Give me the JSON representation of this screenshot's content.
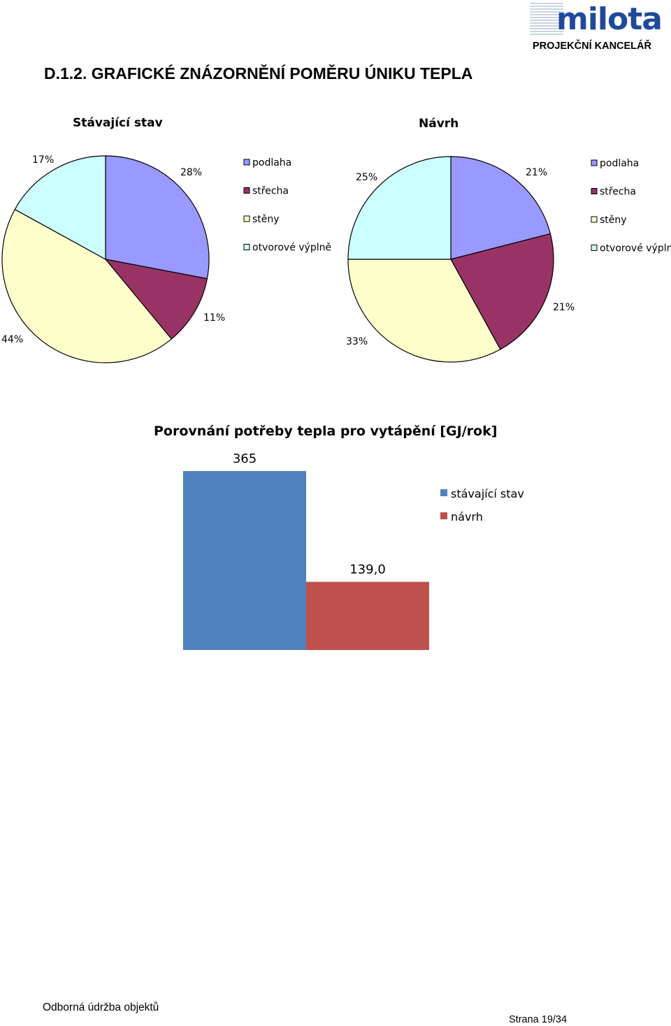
{
  "header": {
    "logo_text": "milota",
    "office": "PROJEKČNÍ KANCELÁŘ"
  },
  "section_heading": "D.1.2. GRAFICKÉ ZNÁZORNĚNÍ POMĚRU ÚNIKU TEPLA",
  "chart_data": [
    {
      "type": "pie",
      "title": "Stávající stav",
      "categories": [
        "podlaha",
        "střecha",
        "stěny",
        "otvorové výplně"
      ],
      "values": [
        28,
        11,
        44,
        17
      ],
      "labels": [
        "28%",
        "11%",
        "44%",
        "17%"
      ],
      "colors": [
        "#9999ff",
        "#993366",
        "#ffffcc",
        "#ccffff"
      ],
      "legend_position": "right"
    },
    {
      "type": "pie",
      "title": "Návrh",
      "categories": [
        "podlaha",
        "střecha",
        "stěny",
        "otvorové výplně"
      ],
      "values": [
        21,
        21,
        33,
        25
      ],
      "labels": [
        "21%",
        "21%",
        "33%",
        "25%"
      ],
      "colors": [
        "#9999ff",
        "#993366",
        "#ffffcc",
        "#ccffff"
      ],
      "legend_position": "right"
    },
    {
      "type": "bar",
      "title": "Porovnání potřeby tepla pro vytápění [GJ/rok]",
      "series": [
        {
          "name": "stávající stav",
          "values": [
            365
          ],
          "label": "365",
          "color": "#4f81bd"
        },
        {
          "name": "návrh",
          "values": [
            139.0
          ],
          "label": "139,0",
          "color": "#c0504d"
        }
      ],
      "ylim": [
        0,
        365
      ],
      "legend_position": "right",
      "grid": false
    }
  ],
  "footer": {
    "left": "Odborná údržba objektů",
    "right": "Strana 19/34"
  }
}
